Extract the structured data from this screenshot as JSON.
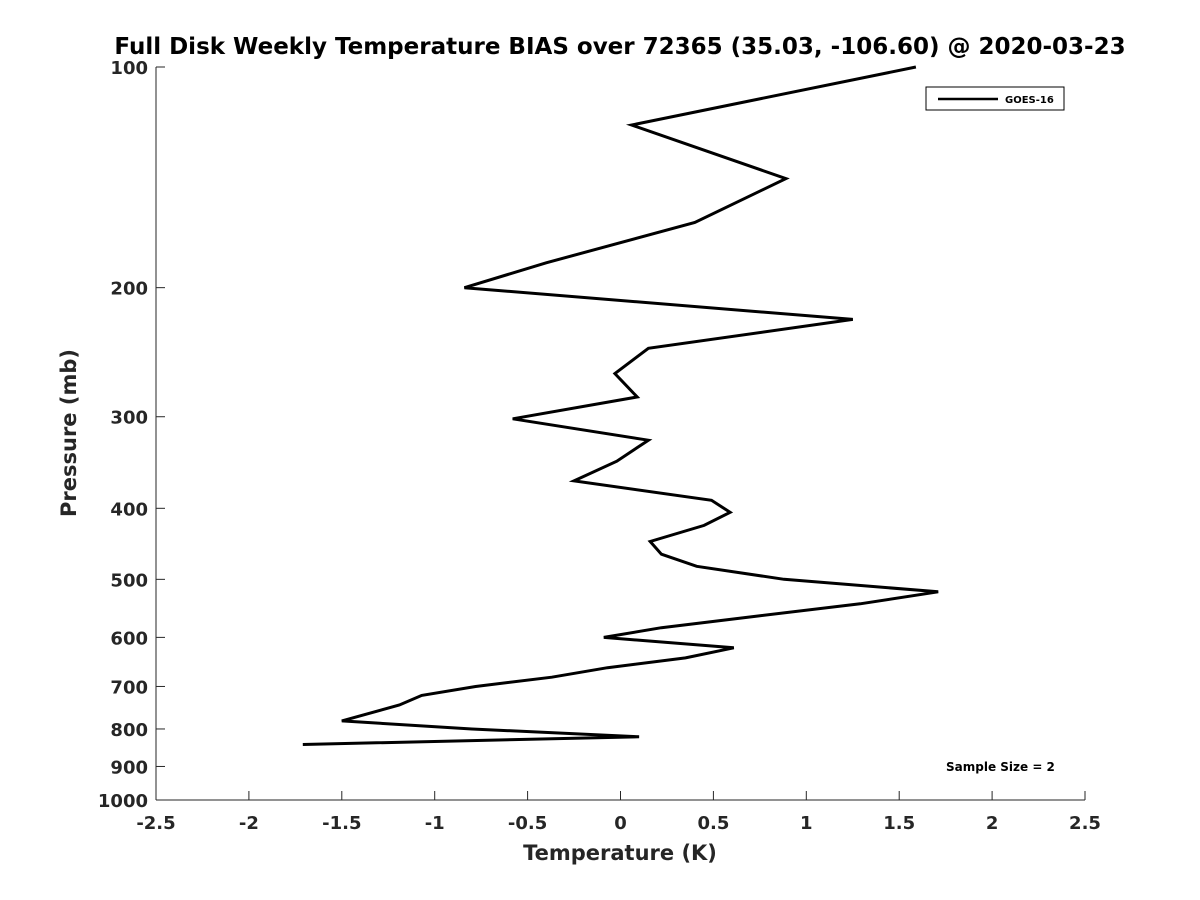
{
  "chart_data": {
    "type": "line",
    "title": "Full Disk Weekly Temperature BIAS over 72365 (35.03, -106.60) @ 2020-03-23",
    "xlabel": "Temperature (K)",
    "ylabel": "Pressure (mb)",
    "xlim": [
      -2.5,
      2.5
    ],
    "ylim": [
      100,
      1000
    ],
    "y_scale": "log",
    "y_reversed": true,
    "grid": false,
    "legend_position": "top-right",
    "x_ticks": [
      "-2.5",
      "-2",
      "-1.5",
      "-1",
      "-0.5",
      "0",
      "0.5",
      "1",
      "1.5",
      "2",
      "2.5"
    ],
    "y_ticks": [
      "100",
      "200",
      "300",
      "400",
      "500",
      "600",
      "700",
      "800",
      "900",
      "1000"
    ],
    "series": [
      {
        "name": "GOES-16",
        "color": "#000000",
        "x": [
          1.59,
          0.06,
          0.89,
          0.4,
          -0.4,
          -0.84,
          1.25,
          0.15,
          -0.03,
          0.09,
          -0.58,
          0.15,
          -0.02,
          -0.25,
          0.49,
          0.59,
          0.45,
          0.16,
          0.22,
          0.41,
          0.88,
          1.71,
          1.29,
          0.74,
          0.22,
          -0.09,
          0.61,
          0.35,
          -0.07,
          -0.37,
          -0.78,
          -1.07,
          -1.19,
          -1.5,
          -0.8,
          0.1,
          -1.71
        ],
        "y": [
          100,
          120,
          142,
          163,
          185,
          200,
          221,
          242,
          262,
          282,
          302,
          323,
          345,
          367,
          390,
          405,
          422,
          444,
          462,
          480,
          500,
          520,
          540,
          561,
          582,
          600,
          620,
          640,
          660,
          680,
          700,
          720,
          742,
          780,
          800,
          820,
          840
        ]
      }
    ],
    "annotations": [
      "Sample Size = 2"
    ]
  }
}
